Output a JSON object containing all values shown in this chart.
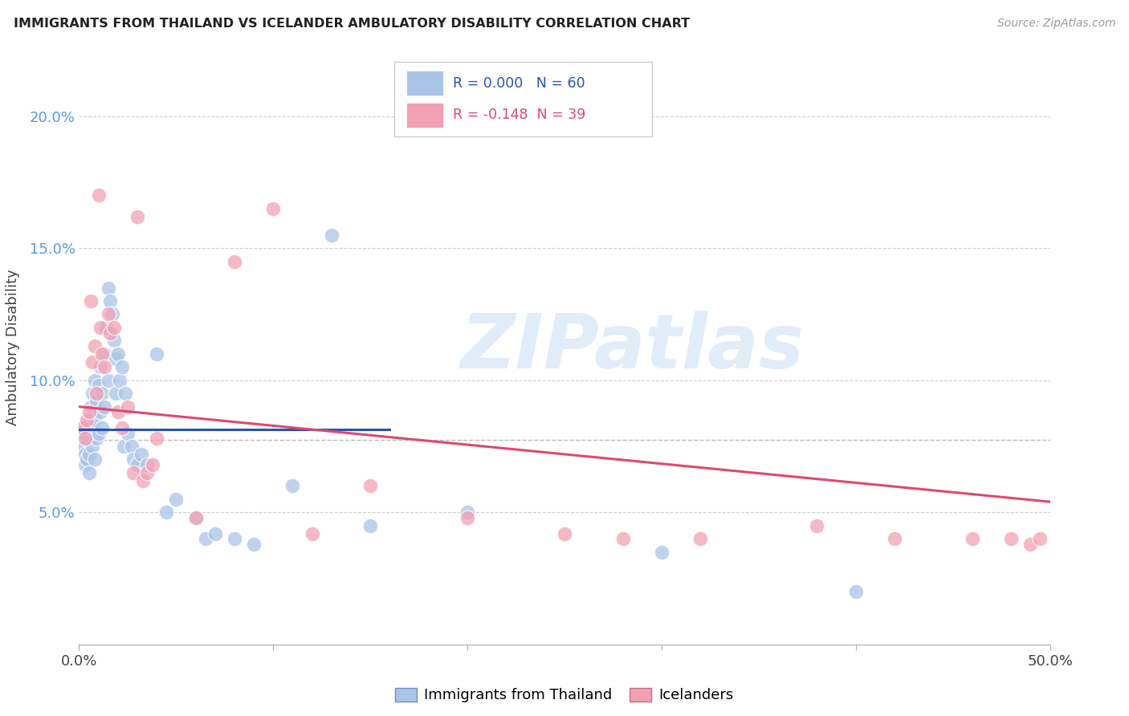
{
  "title": "IMMIGRANTS FROM THAILAND VS ICELANDER AMBULATORY DISABILITY CORRELATION CHART",
  "source": "Source: ZipAtlas.com",
  "ylabel": "Ambulatory Disability",
  "watermark": "ZIPatlas",
  "legend_blue_r": "0.000",
  "legend_blue_n": "60",
  "legend_pink_r": "-0.148",
  "legend_pink_n": "39",
  "legend_blue_label": "Immigrants from Thailand",
  "legend_pink_label": "Icelanders",
  "blue_color": "#aac4e8",
  "pink_color": "#f2a0b4",
  "blue_line_color": "#2255bb",
  "pink_line_color": "#e04870",
  "ytick_color": "#5599ee",
  "yticks": [
    0.05,
    0.1,
    0.15,
    0.2
  ],
  "ytick_labels": [
    "5.0%",
    "10.0%",
    "15.0%",
    "20.0%"
  ],
  "xlim": [
    0.0,
    0.5
  ],
  "ylim": [
    0.0,
    0.225
  ],
  "blue_x": [
    0.002,
    0.002,
    0.003,
    0.003,
    0.003,
    0.004,
    0.004,
    0.005,
    0.005,
    0.005,
    0.006,
    0.006,
    0.007,
    0.007,
    0.008,
    0.008,
    0.008,
    0.009,
    0.009,
    0.01,
    0.01,
    0.011,
    0.011,
    0.012,
    0.012,
    0.013,
    0.013,
    0.014,
    0.015,
    0.015,
    0.016,
    0.017,
    0.018,
    0.019,
    0.019,
    0.02,
    0.021,
    0.022,
    0.023,
    0.024,
    0.025,
    0.027,
    0.028,
    0.03,
    0.032,
    0.035,
    0.04,
    0.045,
    0.05,
    0.06,
    0.065,
    0.07,
    0.08,
    0.09,
    0.11,
    0.13,
    0.15,
    0.2,
    0.3,
    0.4
  ],
  "blue_y": [
    0.082,
    0.075,
    0.08,
    0.072,
    0.068,
    0.078,
    0.07,
    0.085,
    0.072,
    0.065,
    0.09,
    0.082,
    0.095,
    0.075,
    0.1,
    0.085,
    0.07,
    0.092,
    0.078,
    0.098,
    0.08,
    0.105,
    0.088,
    0.095,
    0.082,
    0.11,
    0.09,
    0.12,
    0.135,
    0.1,
    0.13,
    0.125,
    0.115,
    0.108,
    0.095,
    0.11,
    0.1,
    0.105,
    0.075,
    0.095,
    0.08,
    0.075,
    0.07,
    0.068,
    0.072,
    0.068,
    0.11,
    0.05,
    0.055,
    0.048,
    0.04,
    0.042,
    0.04,
    0.038,
    0.06,
    0.155,
    0.045,
    0.05,
    0.035,
    0.02
  ],
  "pink_x": [
    0.002,
    0.003,
    0.004,
    0.005,
    0.006,
    0.007,
    0.008,
    0.009,
    0.01,
    0.011,
    0.012,
    0.013,
    0.015,
    0.016,
    0.018,
    0.02,
    0.022,
    0.025,
    0.028,
    0.03,
    0.033,
    0.035,
    0.038,
    0.04,
    0.06,
    0.08,
    0.1,
    0.12,
    0.15,
    0.2,
    0.25,
    0.28,
    0.32,
    0.38,
    0.42,
    0.46,
    0.48,
    0.49,
    0.495
  ],
  "pink_y": [
    0.082,
    0.078,
    0.085,
    0.088,
    0.13,
    0.107,
    0.113,
    0.095,
    0.17,
    0.12,
    0.11,
    0.105,
    0.125,
    0.118,
    0.12,
    0.088,
    0.082,
    0.09,
    0.065,
    0.162,
    0.062,
    0.065,
    0.068,
    0.078,
    0.048,
    0.145,
    0.165,
    0.042,
    0.06,
    0.048,
    0.042,
    0.04,
    0.04,
    0.045,
    0.04,
    0.04,
    0.04,
    0.038,
    0.04
  ],
  "dashed_line_y": 0.0775,
  "blue_trend_x": [
    0.0,
    0.16
  ],
  "blue_trend_y": [
    0.0815,
    0.0815
  ],
  "pink_trend_x": [
    0.0,
    0.5
  ],
  "pink_trend_y": [
    0.09,
    0.054
  ]
}
